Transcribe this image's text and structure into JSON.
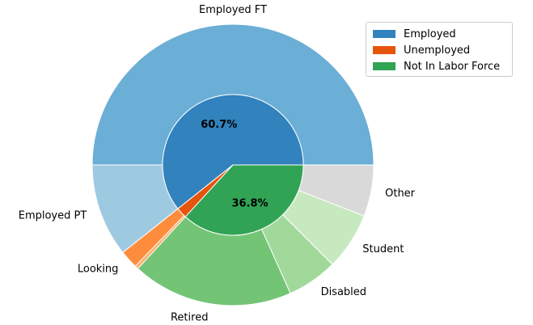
{
  "chart_data": {
    "type": "pie",
    "inner": {
      "labels": [
        "Employed",
        "Unemployed",
        "Not In Labor Force"
      ],
      "values": [
        60.7,
        2.5,
        36.8
      ],
      "colors": [
        "#3182bd",
        "#e6550d",
        "#31a354"
      ],
      "autopct": [
        "60.7%",
        "",
        "36.8%"
      ]
    },
    "outer": {
      "labels": [
        "Employed FT",
        "Employed PT",
        "Looking",
        "",
        "Retired",
        "Disabled",
        "Student",
        "Other"
      ],
      "values": [
        50.0,
        10.7,
        2.1,
        0.4,
        18.5,
        5.8,
        6.6,
        5.9
      ],
      "colors": [
        "#6baed6",
        "#9ecae1",
        "#fd8d3c",
        "#fdae6b",
        "#74c476",
        "#a1d99b",
        "#c7e9c0",
        "#d9d9d9"
      ]
    },
    "start_angle_deg": 0,
    "legend_position": "top-right"
  },
  "legend": {
    "items": [
      {
        "label": "Employed",
        "color": "#3182bd"
      },
      {
        "label": "Unemployed",
        "color": "#e6550d"
      },
      {
        "label": "Not In Labor Force",
        "color": "#31a354"
      }
    ]
  }
}
